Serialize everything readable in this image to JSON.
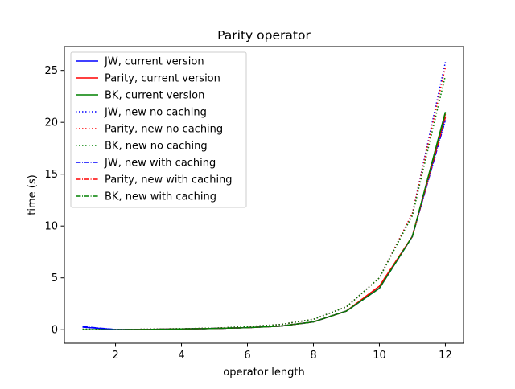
{
  "chart_data": {
    "type": "line",
    "title": "Parity operator",
    "xlabel": "operator length",
    "ylabel": "time (s)",
    "xlim": [
      0.45,
      12.55
    ],
    "ylim": [
      -1.3,
      27.3
    ],
    "x_ticks": [
      2,
      4,
      6,
      8,
      10,
      12
    ],
    "y_ticks": [
      0,
      5,
      10,
      15,
      20,
      25
    ],
    "grid": false,
    "legend_position": "top-left",
    "x": [
      1,
      2,
      3,
      4,
      5,
      6,
      7,
      8,
      9,
      10,
      11,
      12
    ],
    "series": [
      {
        "name": "JW, current version",
        "color": "#0000ff",
        "linestyle": "solid",
        "values": [
          0.25,
          0.02,
          0.03,
          0.08,
          0.12,
          0.2,
          0.35,
          0.75,
          1.8,
          4.0,
          9.0,
          20.5
        ]
      },
      {
        "name": "Parity, current version",
        "color": "#ff0000",
        "linestyle": "solid",
        "values": [
          0.0,
          0.0,
          0.03,
          0.08,
          0.12,
          0.2,
          0.35,
          0.75,
          1.8,
          4.2,
          9.0,
          20.8
        ]
      },
      {
        "name": "BK, current version",
        "color": "#008000",
        "linestyle": "solid",
        "values": [
          0.0,
          0.0,
          0.03,
          0.08,
          0.12,
          0.2,
          0.35,
          0.75,
          1.8,
          4.0,
          9.0,
          21.0
        ]
      },
      {
        "name": "JW, new no caching",
        "color": "#0000ff",
        "linestyle": "dotted",
        "values": [
          0.05,
          0.02,
          0.05,
          0.1,
          0.15,
          0.3,
          0.5,
          1.0,
          2.2,
          5.0,
          11.2,
          25.8
        ]
      },
      {
        "name": "Parity, new no caching",
        "color": "#ff0000",
        "linestyle": "dotted",
        "values": [
          0.05,
          0.02,
          0.05,
          0.1,
          0.15,
          0.3,
          0.5,
          1.0,
          2.2,
          5.0,
          11.2,
          25.3
        ]
      },
      {
        "name": "BK, new no caching",
        "color": "#008000",
        "linestyle": "dotted",
        "values": [
          0.05,
          0.02,
          0.05,
          0.1,
          0.15,
          0.3,
          0.5,
          1.0,
          2.2,
          5.0,
          11.0,
          24.5
        ]
      },
      {
        "name": "JW, new with caching",
        "color": "#0000ff",
        "linestyle": "dashdot",
        "values": [
          0.3,
          0.02,
          0.03,
          0.08,
          0.12,
          0.2,
          0.35,
          0.75,
          1.8,
          4.0,
          9.0,
          20.2
        ]
      },
      {
        "name": "Parity, new with caching",
        "color": "#ff0000",
        "linestyle": "dashdot",
        "values": [
          0.0,
          0.0,
          0.03,
          0.08,
          0.12,
          0.2,
          0.35,
          0.75,
          1.8,
          4.2,
          9.0,
          20.5
        ]
      },
      {
        "name": "BK, new with caching",
        "color": "#008000",
        "linestyle": "dashdot",
        "values": [
          0.0,
          0.0,
          0.03,
          0.08,
          0.12,
          0.2,
          0.35,
          0.75,
          1.8,
          4.0,
          9.0,
          20.9
        ]
      }
    ]
  }
}
